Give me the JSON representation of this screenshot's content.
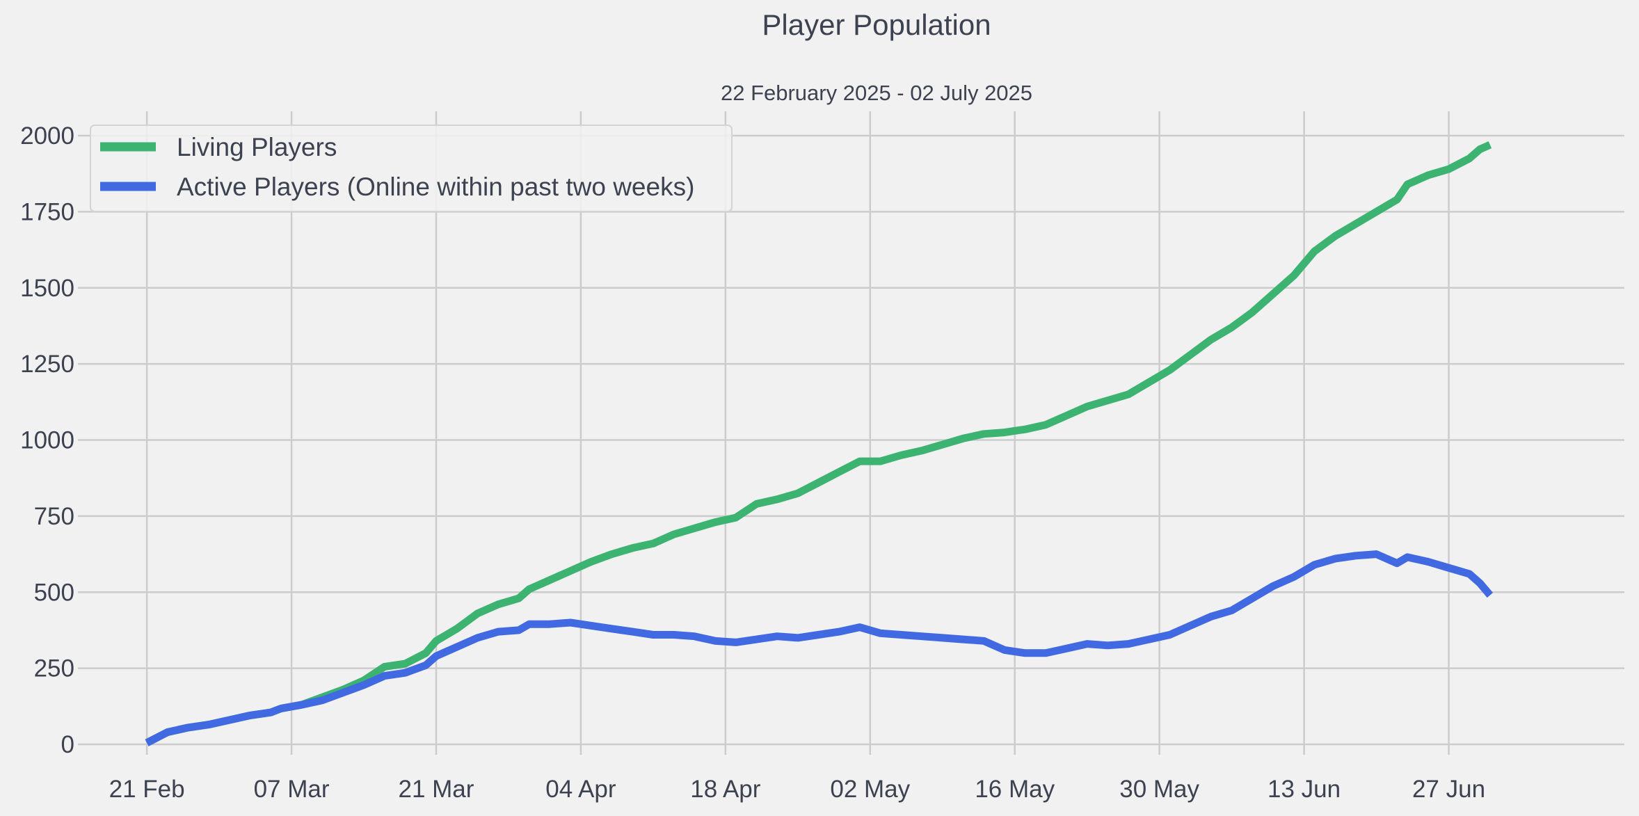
{
  "chart_data": {
    "type": "line",
    "title": "Player Population",
    "subtitle": "22 February 2025 - 02 July 2025",
    "xlabel": "",
    "ylabel": "",
    "x_start": "2025-02-22",
    "x_end": "2025-07-02",
    "xlim": [
      "2025-02-16",
      "2025-07-15"
    ],
    "ylim": [
      -80,
      2080
    ],
    "x_ticks": [
      {
        "date": "2025-02-22",
        "label": "21 Feb"
      },
      {
        "date": "2025-03-08",
        "label": "07 Mar"
      },
      {
        "date": "2025-03-22",
        "label": "21 Mar"
      },
      {
        "date": "2025-04-05",
        "label": "04 Apr"
      },
      {
        "date": "2025-04-19",
        "label": "18 Apr"
      },
      {
        "date": "2025-05-03",
        "label": "02 May"
      },
      {
        "date": "2025-05-17",
        "label": "16 May"
      },
      {
        "date": "2025-05-31",
        "label": "30 May"
      },
      {
        "date": "2025-06-14",
        "label": "13 Jun"
      },
      {
        "date": "2025-06-28",
        "label": "27 Jun"
      }
    ],
    "y_ticks": [
      0,
      250,
      500,
      750,
      1000,
      1250,
      1500,
      1750,
      2000
    ],
    "grid": true,
    "legend_position": "top-left",
    "series": [
      {
        "name": "Living Players",
        "color": "#3cb371",
        "points": [
          [
            "2025-02-22",
            5
          ],
          [
            "2025-02-24",
            40
          ],
          [
            "2025-02-26",
            55
          ],
          [
            "2025-02-28",
            65
          ],
          [
            "2025-03-02",
            80
          ],
          [
            "2025-03-04",
            95
          ],
          [
            "2025-03-06",
            105
          ],
          [
            "2025-03-07",
            118
          ],
          [
            "2025-03-09",
            130
          ],
          [
            "2025-03-11",
            155
          ],
          [
            "2025-03-13",
            180
          ],
          [
            "2025-03-15",
            210
          ],
          [
            "2025-03-17",
            255
          ],
          [
            "2025-03-19",
            265
          ],
          [
            "2025-03-21",
            300
          ],
          [
            "2025-03-22",
            340
          ],
          [
            "2025-03-24",
            380
          ],
          [
            "2025-03-26",
            430
          ],
          [
            "2025-03-28",
            460
          ],
          [
            "2025-03-30",
            480
          ],
          [
            "2025-03-31",
            510
          ],
          [
            "2025-04-02",
            540
          ],
          [
            "2025-04-04",
            570
          ],
          [
            "2025-04-06",
            600
          ],
          [
            "2025-04-08",
            625
          ],
          [
            "2025-04-10",
            645
          ],
          [
            "2025-04-12",
            660
          ],
          [
            "2025-04-14",
            690
          ],
          [
            "2025-04-16",
            710
          ],
          [
            "2025-04-18",
            730
          ],
          [
            "2025-04-20",
            745
          ],
          [
            "2025-04-22",
            790
          ],
          [
            "2025-04-24",
            805
          ],
          [
            "2025-04-26",
            825
          ],
          [
            "2025-04-28",
            860
          ],
          [
            "2025-04-30",
            895
          ],
          [
            "2025-05-02",
            930
          ],
          [
            "2025-05-04",
            930
          ],
          [
            "2025-05-06",
            950
          ],
          [
            "2025-05-08",
            965
          ],
          [
            "2025-05-10",
            985
          ],
          [
            "2025-05-12",
            1005
          ],
          [
            "2025-05-14",
            1020
          ],
          [
            "2025-05-16",
            1025
          ],
          [
            "2025-05-18",
            1035
          ],
          [
            "2025-05-20",
            1050
          ],
          [
            "2025-05-22",
            1080
          ],
          [
            "2025-05-24",
            1110
          ],
          [
            "2025-05-26",
            1130
          ],
          [
            "2025-05-28",
            1150
          ],
          [
            "2025-05-30",
            1190
          ],
          [
            "2025-06-01",
            1230
          ],
          [
            "2025-06-03",
            1280
          ],
          [
            "2025-06-05",
            1330
          ],
          [
            "2025-06-07",
            1370
          ],
          [
            "2025-06-09",
            1420
          ],
          [
            "2025-06-11",
            1480
          ],
          [
            "2025-06-13",
            1540
          ],
          [
            "2025-06-15",
            1620
          ],
          [
            "2025-06-17",
            1670
          ],
          [
            "2025-06-19",
            1710
          ],
          [
            "2025-06-21",
            1750
          ],
          [
            "2025-06-23",
            1790
          ],
          [
            "2025-06-24",
            1840
          ],
          [
            "2025-06-26",
            1870
          ],
          [
            "2025-06-28",
            1890
          ],
          [
            "2025-06-30",
            1925
          ],
          [
            "2025-07-01",
            1955
          ],
          [
            "2025-07-02",
            1970
          ]
        ]
      },
      {
        "name": "Active Players (Online within past two weeks)",
        "color": "#4169e1",
        "points": [
          [
            "2025-02-22",
            5
          ],
          [
            "2025-02-24",
            40
          ],
          [
            "2025-02-26",
            55
          ],
          [
            "2025-02-28",
            65
          ],
          [
            "2025-03-02",
            80
          ],
          [
            "2025-03-04",
            95
          ],
          [
            "2025-03-06",
            105
          ],
          [
            "2025-03-07",
            118
          ],
          [
            "2025-03-09",
            130
          ],
          [
            "2025-03-11",
            145
          ],
          [
            "2025-03-13",
            170
          ],
          [
            "2025-03-15",
            195
          ],
          [
            "2025-03-17",
            225
          ],
          [
            "2025-03-19",
            235
          ],
          [
            "2025-03-21",
            260
          ],
          [
            "2025-03-22",
            290
          ],
          [
            "2025-03-24",
            320
          ],
          [
            "2025-03-26",
            350
          ],
          [
            "2025-03-28",
            370
          ],
          [
            "2025-03-30",
            375
          ],
          [
            "2025-03-31",
            395
          ],
          [
            "2025-04-02",
            395
          ],
          [
            "2025-04-04",
            400
          ],
          [
            "2025-04-06",
            390
          ],
          [
            "2025-04-08",
            380
          ],
          [
            "2025-04-10",
            370
          ],
          [
            "2025-04-12",
            360
          ],
          [
            "2025-04-14",
            360
          ],
          [
            "2025-04-16",
            355
          ],
          [
            "2025-04-18",
            340
          ],
          [
            "2025-04-20",
            335
          ],
          [
            "2025-04-22",
            345
          ],
          [
            "2025-04-24",
            355
          ],
          [
            "2025-04-26",
            350
          ],
          [
            "2025-04-28",
            360
          ],
          [
            "2025-04-30",
            370
          ],
          [
            "2025-05-02",
            385
          ],
          [
            "2025-05-04",
            365
          ],
          [
            "2025-05-06",
            360
          ],
          [
            "2025-05-08",
            355
          ],
          [
            "2025-05-10",
            350
          ],
          [
            "2025-05-12",
            345
          ],
          [
            "2025-05-14",
            340
          ],
          [
            "2025-05-16",
            310
          ],
          [
            "2025-05-18",
            300
          ],
          [
            "2025-05-20",
            300
          ],
          [
            "2025-05-22",
            315
          ],
          [
            "2025-05-24",
            330
          ],
          [
            "2025-05-26",
            325
          ],
          [
            "2025-05-28",
            330
          ],
          [
            "2025-05-30",
            345
          ],
          [
            "2025-06-01",
            360
          ],
          [
            "2025-06-03",
            390
          ],
          [
            "2025-06-05",
            420
          ],
          [
            "2025-06-07",
            440
          ],
          [
            "2025-06-09",
            480
          ],
          [
            "2025-06-11",
            520
          ],
          [
            "2025-06-13",
            550
          ],
          [
            "2025-06-15",
            590
          ],
          [
            "2025-06-17",
            610
          ],
          [
            "2025-06-19",
            620
          ],
          [
            "2025-06-21",
            625
          ],
          [
            "2025-06-23",
            595
          ],
          [
            "2025-06-24",
            615
          ],
          [
            "2025-06-26",
            600
          ],
          [
            "2025-06-28",
            580
          ],
          [
            "2025-06-30",
            560
          ],
          [
            "2025-07-01",
            530
          ],
          [
            "2025-07-02",
            490
          ]
        ]
      }
    ]
  }
}
